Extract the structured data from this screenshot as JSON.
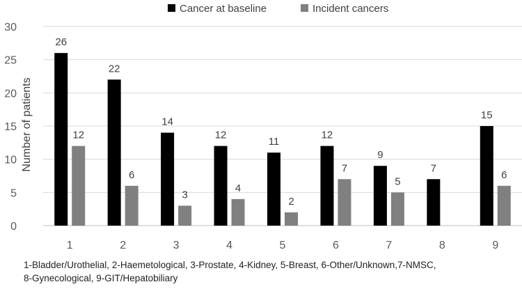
{
  "chart_data": {
    "type": "bar",
    "categories": [
      "1",
      "2",
      "3",
      "4",
      "5",
      "6",
      "7",
      "8",
      "9"
    ],
    "series": [
      {
        "name": "Cancer at baseline",
        "values": [
          26,
          22,
          14,
          12,
          11,
          12,
          9,
          7,
          15
        ],
        "color": "#000000"
      },
      {
        "name": "Incident cancers",
        "values": [
          12,
          6,
          3,
          4,
          2,
          7,
          5,
          null,
          6
        ],
        "color": "#808080"
      }
    ],
    "title": "",
    "xlabel": "",
    "ylabel": "Number of patients",
    "ylim": [
      0,
      30
    ],
    "yticks": [
      0,
      5,
      10,
      15,
      20,
      25,
      30
    ],
    "grid": true,
    "legend": "top"
  },
  "caption": {
    "line1": "1-Bladder/Urothelial, 2-Haemetological, 3-Prostate, 4-Kidney, 5-Breast, 6-Other/Unknown,7-NMSC,",
    "line2": "8-Gynecological, 9-GIT/Hepatobiliary"
  }
}
